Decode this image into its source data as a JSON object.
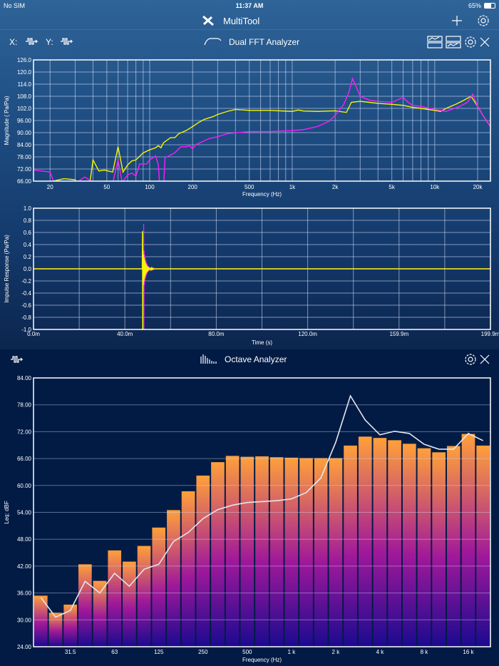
{
  "status_bar": {
    "carrier": "No SIM",
    "time": "11:37 AM",
    "battery": "65%"
  },
  "app": {
    "title": "MultiTool",
    "icons": {
      "logo": "tools-icon",
      "add": "plus-icon",
      "settings": "gear-icon"
    }
  },
  "fft_toolbar": {
    "x_label": "X:",
    "y_label": "Y:",
    "title": "Dual FFT Analyzer",
    "icons": [
      "waveform-icon",
      "layout-top-icon",
      "layout-bottom-icon",
      "gear-icon",
      "close-icon"
    ]
  },
  "octave_toolbar": {
    "title": "Octave Analyzer",
    "icons": [
      "waveform-icon",
      "bars-icon",
      "gear-icon",
      "close-icon"
    ]
  },
  "colors": {
    "yellow": "#f5f500",
    "magenta": "#ff1aff",
    "bar_top": "#ffa03a",
    "bar_mid": "#a0189a",
    "bar_bottom": "#1a0a90",
    "octave_line": "#e6e6f0"
  },
  "chart_data": [
    {
      "type": "line",
      "xlabel": "Frequency (Hz)",
      "ylabel": "Magnitude ( Pa/Pa)",
      "xscale": "log",
      "xlim": [
        15.3,
        24600
      ],
      "ylim": [
        66,
        126
      ],
      "grid": true,
      "yticks": [
        "126.0",
        "120.0",
        "114.0",
        "108.0",
        "102.0",
        "96.00",
        "90.00",
        "84.00",
        "78.00",
        "72.00",
        "66.00"
      ],
      "xticks": [
        {
          "v": 20,
          "t": "20"
        },
        {
          "v": 50,
          "t": "50"
        },
        {
          "v": 100,
          "t": "100"
        },
        {
          "v": 200,
          "t": "200"
        },
        {
          "v": 500,
          "t": "500"
        },
        {
          "v": 1000,
          "t": "1k"
        },
        {
          "v": 2000,
          "t": "2k"
        },
        {
          "v": 5000,
          "t": "5k"
        },
        {
          "v": 10000,
          "t": "10k"
        },
        {
          "v": 20000,
          "t": "20k"
        }
      ],
      "series": [
        {
          "color": "#f5f500",
          "points": [
            [
              20,
              65.5
            ],
            [
              22,
              66.3
            ],
            [
              25,
              67.2
            ],
            [
              30,
              66.7
            ],
            [
              31,
              65
            ],
            [
              38,
              65
            ],
            [
              40,
              76.5
            ],
            [
              44,
              71
            ],
            [
              48,
              71.5
            ],
            [
              55,
              70.5
            ],
            [
              60,
              83
            ],
            [
              65,
              70.5
            ],
            [
              70,
              74
            ],
            [
              75,
              76
            ],
            [
              80,
              76.5
            ],
            [
              90,
              80
            ],
            [
              100,
              81.5
            ],
            [
              110,
              82.5
            ],
            [
              115,
              83.5
            ],
            [
              120,
              82.5
            ],
            [
              125,
              85
            ],
            [
              140,
              87.5
            ],
            [
              150,
              87.5
            ],
            [
              160,
              89.5
            ],
            [
              180,
              91
            ],
            [
              200,
              93
            ],
            [
              220,
              95
            ],
            [
              240,
              96.5
            ],
            [
              280,
              98
            ],
            [
              300,
              99
            ],
            [
              350,
              100.5
            ],
            [
              400,
              101.5
            ],
            [
              500,
              101
            ],
            [
              700,
              101
            ],
            [
              1000,
              100.5
            ],
            [
              1100,
              101.2
            ],
            [
              1200,
              100.7
            ],
            [
              1500,
              100.5
            ],
            [
              2000,
              100.8
            ],
            [
              2400,
              100
            ],
            [
              2600,
              105
            ],
            [
              3000,
              105.5
            ],
            [
              4000,
              104.5
            ],
            [
              5000,
              104
            ],
            [
              6000,
              103.5
            ],
            [
              7000,
              102.5
            ],
            [
              8000,
              102
            ],
            [
              10000,
              101
            ],
            [
              11000,
              100.5
            ],
            [
              12000,
              102
            ],
            [
              14000,
              104
            ],
            [
              16000,
              106
            ],
            [
              18000,
              108
            ],
            [
              20000,
              103
            ],
            [
              22000,
              98
            ],
            [
              24600,
              93
            ]
          ]
        },
        {
          "color": "#ff1aff",
          "points": [
            [
              15.3,
              71.5
            ],
            [
              20,
              70.5
            ],
            [
              21,
              66.5
            ],
            [
              22,
              65
            ],
            [
              30,
              65
            ],
            [
              35,
              68
            ],
            [
              40,
              65.5
            ],
            [
              55,
              65
            ],
            [
              60,
              76.5
            ],
            [
              64,
              65.5
            ],
            [
              70,
              69
            ],
            [
              75,
              70
            ],
            [
              80,
              68.5
            ],
            [
              85,
              74.5
            ],
            [
              95,
              74.5
            ],
            [
              100,
              76.5
            ],
            [
              110,
              78.5
            ],
            [
              115,
              74
            ],
            [
              118,
              62
            ],
            [
              125,
              62
            ],
            [
              128,
              77.5
            ],
            [
              150,
              80
            ],
            [
              165,
              83
            ],
            [
              180,
              83
            ],
            [
              190,
              83.5
            ],
            [
              200,
              82
            ],
            [
              210,
              84
            ],
            [
              260,
              87
            ],
            [
              300,
              88
            ],
            [
              350,
              89.5
            ],
            [
              500,
              90.5
            ],
            [
              700,
              90.5
            ],
            [
              1000,
              91
            ],
            [
              1200,
              91.5
            ],
            [
              1500,
              93
            ],
            [
              1800,
              95.5
            ],
            [
              2000,
              98.5
            ],
            [
              2300,
              104
            ],
            [
              2500,
              110
            ],
            [
              2650,
              116.8
            ],
            [
              2800,
              113
            ],
            [
              3000,
              108
            ],
            [
              3500,
              106
            ],
            [
              4000,
              105.5
            ],
            [
              5000,
              105
            ],
            [
              6000,
              107.5
            ],
            [
              6500,
              105
            ],
            [
              7000,
              103.5
            ],
            [
              8000,
              103
            ],
            [
              10000,
              101.5
            ],
            [
              12000,
              100.5
            ],
            [
              15000,
              103
            ],
            [
              17000,
              105
            ],
            [
              18500,
              109
            ],
            [
              20000,
              103
            ],
            [
              22000,
              98
            ],
            [
              24600,
              93
            ]
          ]
        }
      ]
    },
    {
      "type": "line",
      "xlabel": "Time (s)",
      "ylabel": "Impulse Response (Pa/Pa)",
      "xlim": [
        0,
        199.9
      ],
      "ylim": [
        -1,
        1
      ],
      "grid": true,
      "yticks": [
        "1.0",
        "0.8",
        "0.6",
        "0.4",
        "0.2",
        "0.0",
        "-0.2",
        "-0.4",
        "-0.6",
        "-0.8",
        "-1.0"
      ],
      "xticks": [
        "0.0m",
        "40.0m",
        "80.0m",
        "120.0m",
        "159.9m",
        "199.9m"
      ],
      "series": [
        {
          "color": "#ff1aff",
          "peak_time_ms": 48.2,
          "peak": 0.74,
          "min": -1.0
        },
        {
          "color": "#f5f500",
          "peak_time_ms": 47.7,
          "peak": 0.62,
          "min": -1.0
        }
      ]
    },
    {
      "type": "bar",
      "xlabel": "Frequency (Hz)",
      "ylabel": "Leq: dBF",
      "ylim": [
        24,
        84
      ],
      "grid": true,
      "yticks": [
        "84.00",
        "78.00",
        "72.00",
        "66.00",
        "60.00",
        "54.00",
        "48.00",
        "42.00",
        "36.00",
        "30.00",
        "24.00"
      ],
      "xticks": [
        {
          "i": 2,
          "t": "31.5"
        },
        {
          "i": 5,
          "t": "63"
        },
        {
          "i": 8,
          "t": "125"
        },
        {
          "i": 11,
          "t": "250"
        },
        {
          "i": 14,
          "t": "500"
        },
        {
          "i": 17,
          "t": "1 k"
        },
        {
          "i": 20,
          "t": "2 k"
        },
        {
          "i": 23,
          "t": "4 k"
        },
        {
          "i": 26,
          "t": "8 k"
        },
        {
          "i": 29,
          "t": "16 k"
        }
      ],
      "values": [
        35.4,
        31.6,
        33.4,
        42.4,
        38.7,
        45.5,
        43.0,
        46.5,
        50.6,
        54.5,
        58.7,
        62.2,
        65.2,
        66.6,
        66.4,
        66.5,
        66.3,
        66.2,
        66.1,
        66.1,
        66.1,
        68.9,
        70.9,
        70.6,
        70.1,
        69.3,
        68.3,
        67.4,
        68.8,
        71.5,
        68.9
      ],
      "line_values": [
        35.0,
        30.6,
        32.1,
        38.6,
        36.0,
        40.4,
        37.5,
        41.3,
        42.4,
        47.5,
        49.5,
        52.6,
        54.6,
        55.6,
        56.2,
        56.4,
        56.6,
        57.0,
        58.4,
        61.7,
        69.6,
        80.0,
        74.6,
        71.3,
        72.1,
        71.6,
        69.2,
        68.1,
        68.1,
        71.6,
        70.0
      ]
    }
  ]
}
